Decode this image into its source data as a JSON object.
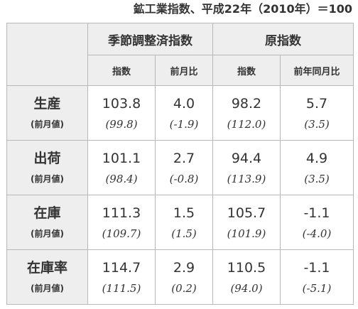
{
  "caption": "鉱工業指数、平成22年（2010年）＝100",
  "header": {
    "group_sa": "季節調整済指数",
    "group_raw": "原指数",
    "sub": [
      "指数",
      "前月比",
      "指数",
      "前年同月比"
    ]
  },
  "rows": [
    {
      "label": "生産",
      "prev_label": "(前月値)",
      "values": [
        "103.8",
        "4.0",
        "98.2",
        "5.7"
      ],
      "prev_values": [
        "(99.8)",
        "(-1.9)",
        "(112.0)",
        "(3.5)"
      ]
    },
    {
      "label": "出荷",
      "prev_label": "(前月値)",
      "values": [
        "101.1",
        "2.7",
        "94.4",
        "4.9"
      ],
      "prev_values": [
        "(98.4)",
        "(-0.8)",
        "(113.9)",
        "(3.5)"
      ]
    },
    {
      "label": "在庫",
      "prev_label": "(前月値)",
      "values": [
        "111.3",
        "1.5",
        "105.7",
        "-1.1"
      ],
      "prev_values": [
        "(109.7)",
        "(1.5)",
        "(101.9)",
        "(-4.0)"
      ]
    },
    {
      "label": "在庫率",
      "prev_label": "(前月値)",
      "values": [
        "114.7",
        "2.9",
        "110.5",
        "-1.1"
      ],
      "prev_values": [
        "(111.5)",
        "(0.2)",
        "(94.0)",
        "(-5.1)"
      ]
    }
  ],
  "colors": {
    "header_bg": "#eeeeee",
    "border": "#b8b8b8",
    "text": "#333333"
  }
}
